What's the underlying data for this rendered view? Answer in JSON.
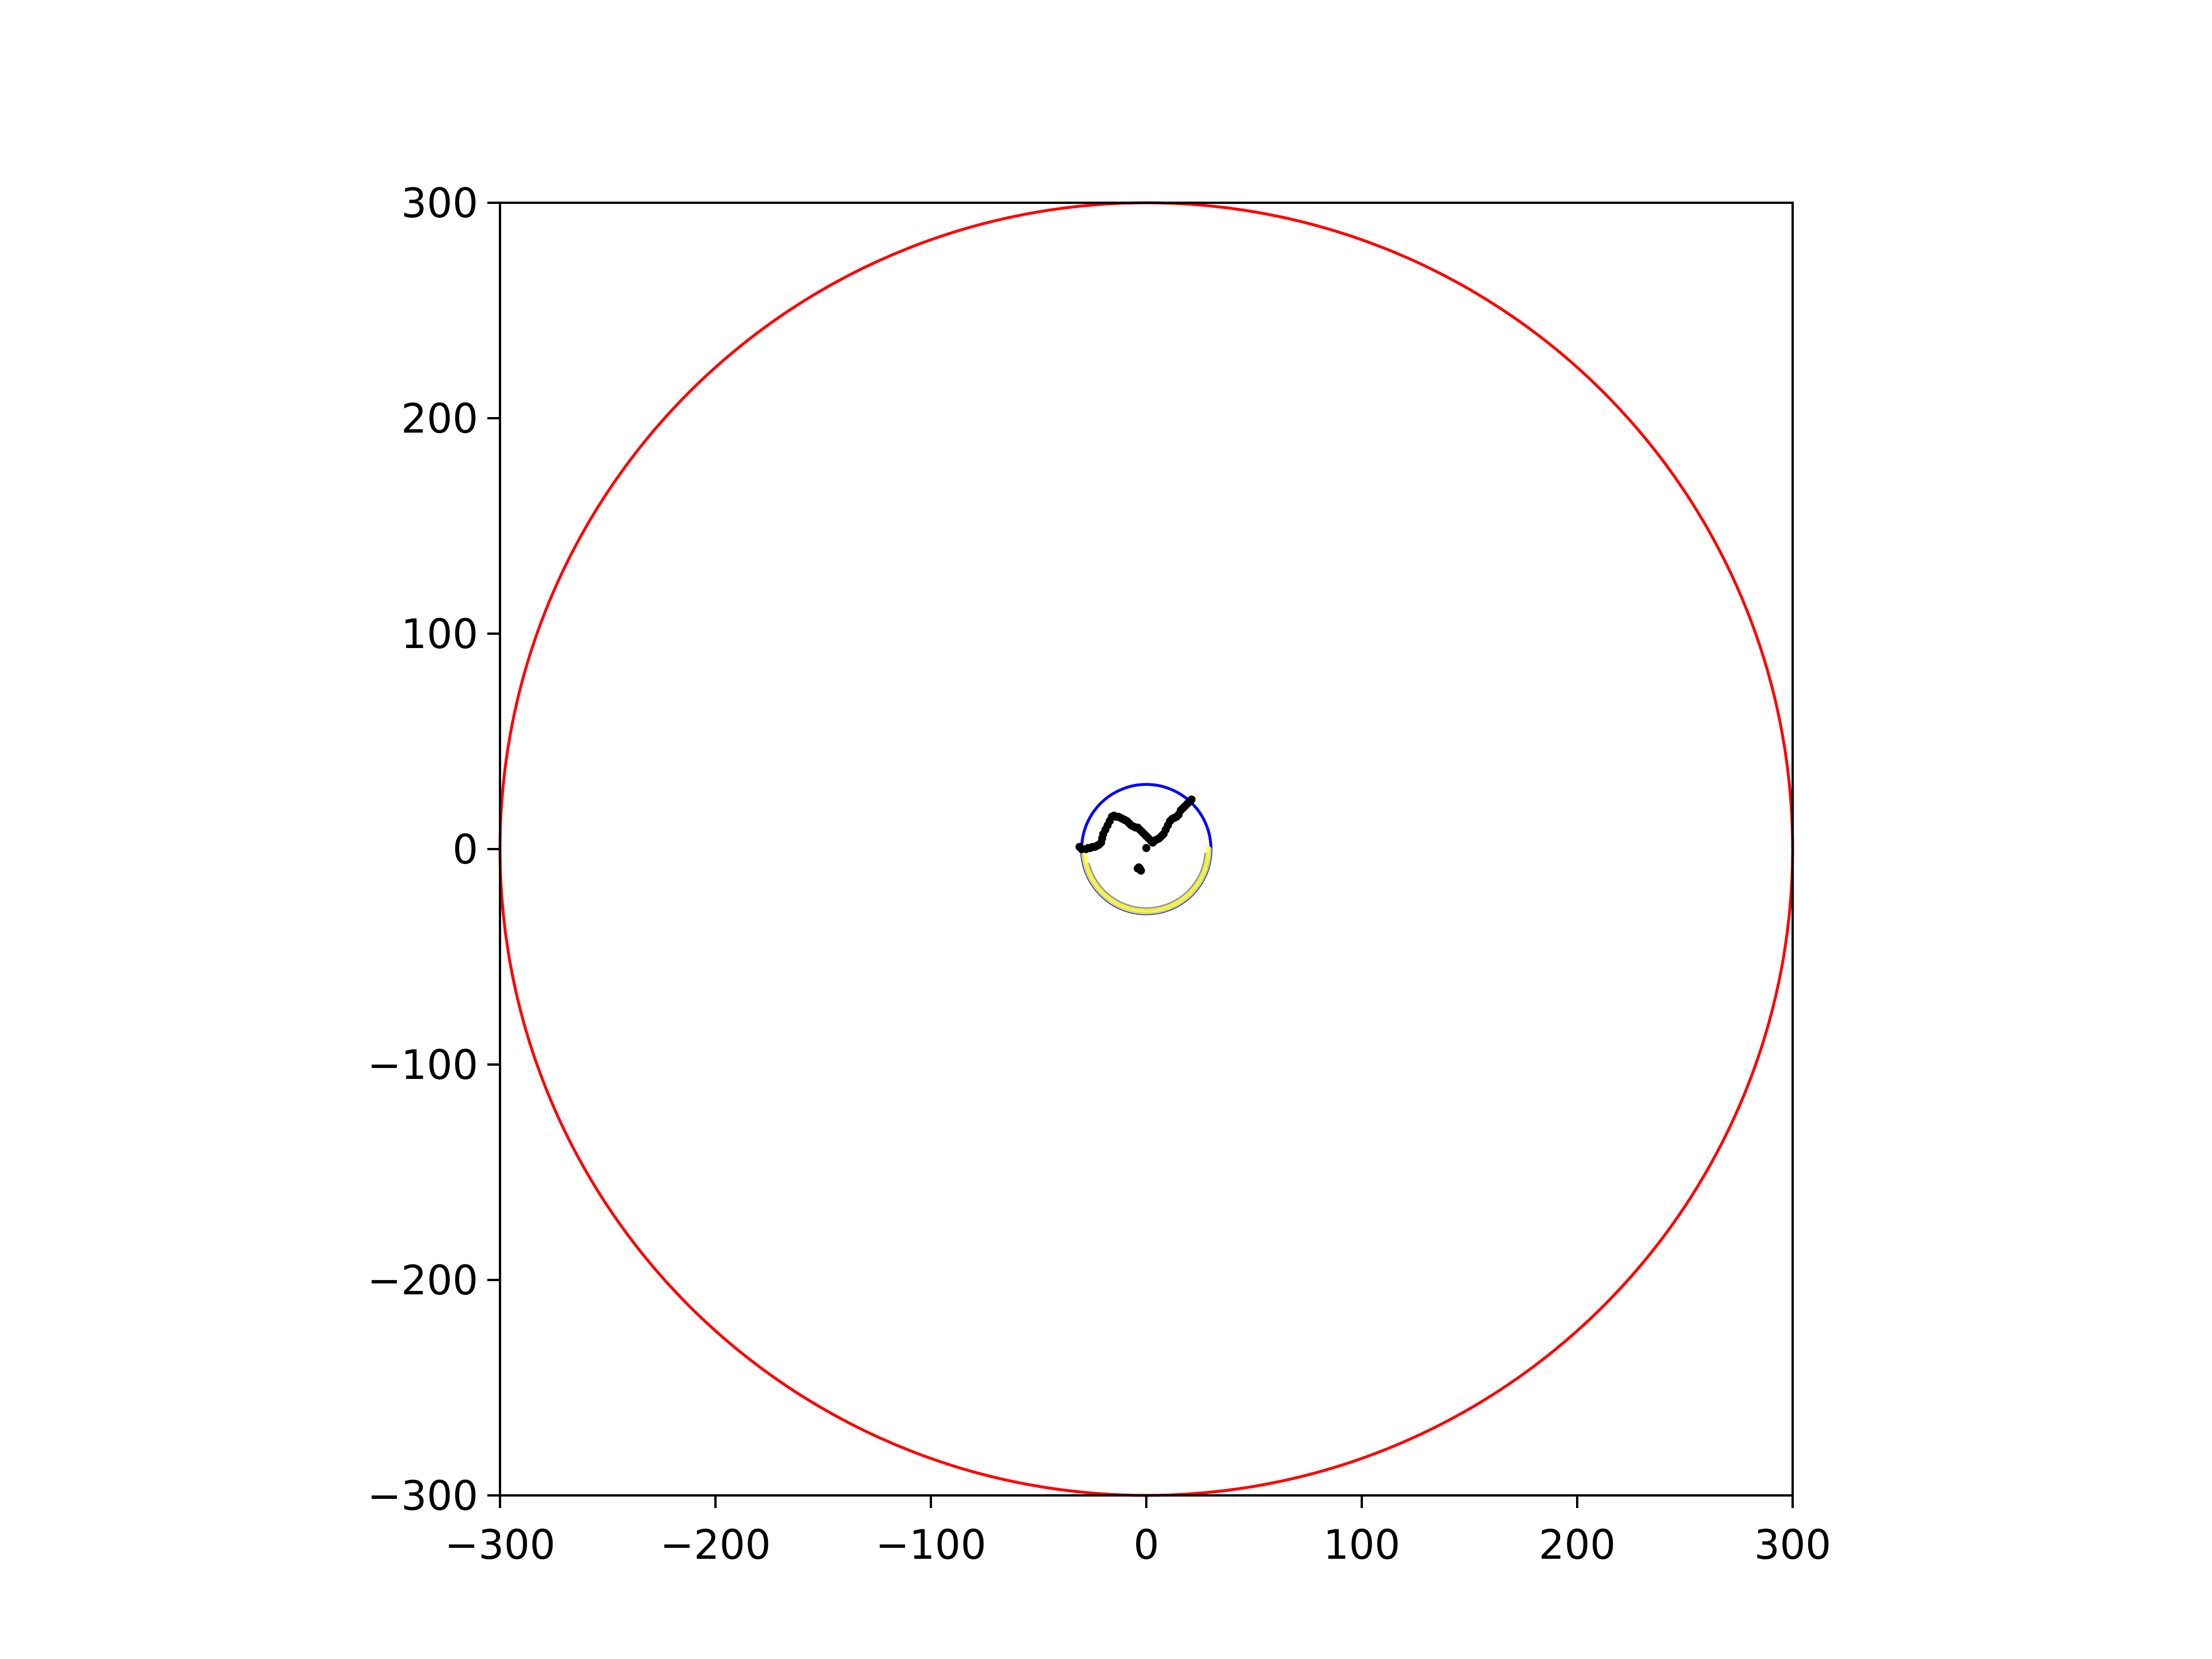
{
  "chart_data": {
    "type": "scatter",
    "title": "",
    "xlabel": "",
    "ylabel": "",
    "xlim": [
      -300,
      300
    ],
    "ylim": [
      -300,
      300
    ],
    "aspect": "equal",
    "grid": false,
    "legend": "none",
    "x_ticks": [
      {
        "value": -300,
        "label": "−300"
      },
      {
        "value": -200,
        "label": "−200"
      },
      {
        "value": -100,
        "label": "−100"
      },
      {
        "value": 0,
        "label": "0"
      },
      {
        "value": 100,
        "label": "100"
      },
      {
        "value": 200,
        "label": "200"
      },
      {
        "value": 300,
        "label": "300"
      }
    ],
    "y_ticks": [
      {
        "value": -300,
        "label": "−300"
      },
      {
        "value": -200,
        "label": "−200"
      },
      {
        "value": -100,
        "label": "−100"
      },
      {
        "value": 0,
        "label": "0"
      },
      {
        "value": 100,
        "label": "100"
      },
      {
        "value": 200,
        "label": "200"
      },
      {
        "value": 300,
        "label": "300"
      }
    ],
    "circles": [
      {
        "id": "outer-boundary",
        "cx": 0,
        "cy": 0,
        "r": 300,
        "color": "#ff0000"
      },
      {
        "id": "inner-ring",
        "cx": 0,
        "cy": 0,
        "r": 30,
        "color": "#0000ff"
      }
    ],
    "arcs": [
      {
        "id": "gray-arc",
        "cx": 0,
        "cy": 0,
        "r": 28,
        "start_deg": 195,
        "end_deg": 355,
        "color": "#808080",
        "width": 3
      },
      {
        "id": "yellow-arc",
        "cx": 0,
        "cy": 0,
        "r": 29,
        "start_deg": 185,
        "end_deg": 360,
        "color": "#ffff44",
        "width": 4
      }
    ],
    "points": {
      "color": "#000000",
      "x": [
        -31,
        -30,
        -28,
        -27,
        -26,
        -25,
        -24,
        -23,
        -22,
        -21,
        -20.5,
        -20,
        -19,
        -18,
        -17,
        -16,
        -15,
        -14,
        -13,
        -12,
        -11,
        -10,
        -9,
        -8,
        -7,
        -6,
        -5,
        -4,
        -3,
        -2,
        -1,
        0,
        1,
        2,
        3,
        4,
        5,
        6,
        7,
        8,
        9,
        10,
        11,
        12,
        13,
        14,
        15,
        16,
        17,
        18,
        19,
        20,
        21,
        0,
        -3.5,
        -4,
        -3,
        -2.5
      ],
      "y": [
        1,
        0,
        0,
        0.5,
        0.5,
        1,
        1,
        1.5,
        2,
        3,
        5,
        7,
        9,
        11,
        13,
        15,
        15.5,
        15,
        15,
        14.5,
        14,
        13.5,
        13,
        12,
        11,
        10.5,
        10,
        10,
        9,
        8,
        7,
        6,
        5,
        4,
        3,
        4,
        4.5,
        5,
        6,
        7,
        9,
        11,
        13,
        14,
        14.5,
        15,
        16,
        18,
        19,
        20,
        21,
        22,
        23,
        0.5,
        -8.5,
        -9,
        -9,
        -10
      ]
    }
  }
}
